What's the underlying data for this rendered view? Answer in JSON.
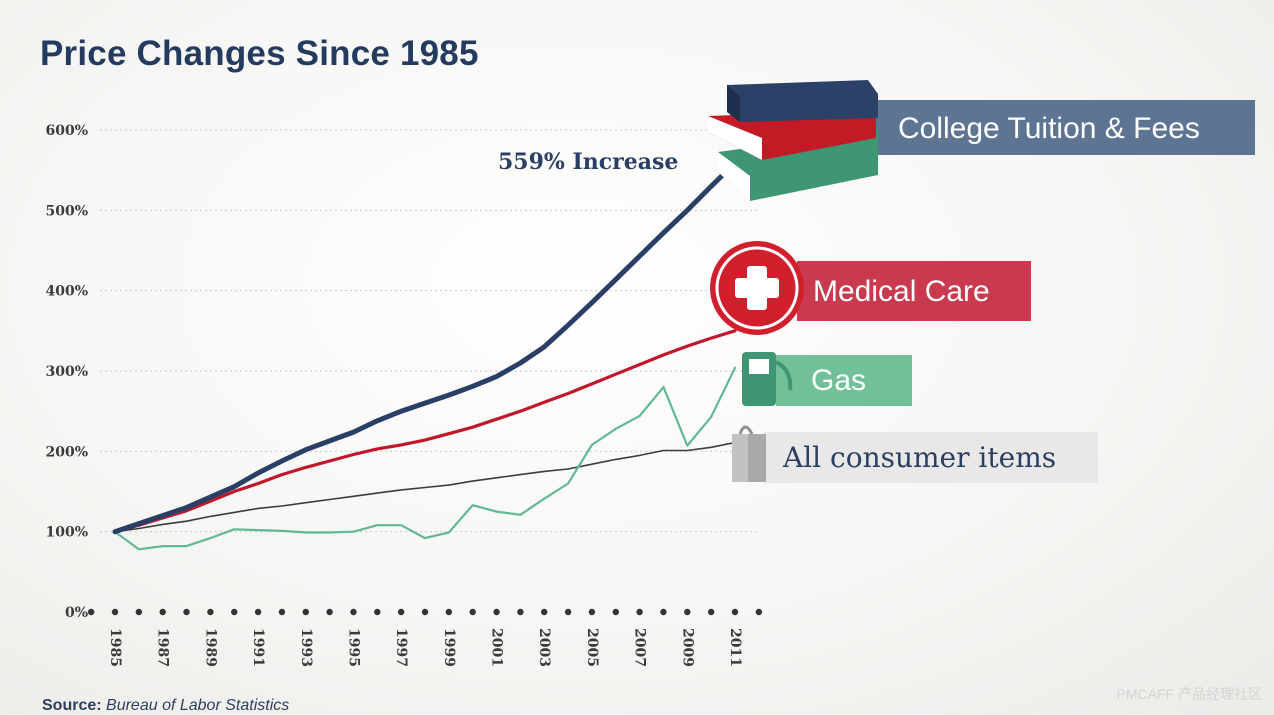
{
  "title": "Price Changes Since 1985",
  "source_label": "Source:",
  "source_name": "Bureau of Labor Statistics",
  "watermark": "PMCAFF 产品经理社区",
  "annotation": "559% Increase",
  "colors": {
    "tuition": "#2b3f66",
    "medical": "#c0172a",
    "gas": "#62b893",
    "consumer": "#3c3c3c",
    "tuition_label_bg": "#566f8f",
    "medical_label_bg": "#c83448",
    "gas_label_bg": "#6dbe97",
    "consumer_label_bg": "#e8e8e8",
    "axis_text": "#3a3a3a"
  },
  "chart_data": {
    "type": "line",
    "title": "Price Changes Since 1985",
    "x": [
      1985,
      1986,
      1987,
      1988,
      1989,
      1990,
      1991,
      1992,
      1993,
      1994,
      1995,
      1996,
      1997,
      1998,
      1999,
      2000,
      2001,
      2002,
      2003,
      2004,
      2005,
      2006,
      2007,
      2008,
      2009,
      2010,
      2011
    ],
    "x_tick_labels": [
      "1985",
      "1987",
      "1989",
      "1991",
      "1993",
      "1995",
      "1997",
      "1999",
      "2001",
      "2003",
      "2005",
      "2007",
      "2009",
      "2011"
    ],
    "y_tick_labels": [
      "0%",
      "100%",
      "200%",
      "300%",
      "400%",
      "500%",
      "600%"
    ],
    "y_ticks": [
      0,
      100,
      200,
      300,
      400,
      500,
      600
    ],
    "ylim": [
      0,
      600
    ],
    "xlim": [
      1985,
      2011
    ],
    "grid": true,
    "series": [
      {
        "name": "College Tuition & Fees",
        "key": "tuition",
        "values": [
          100,
          110,
          120,
          130,
          143,
          156,
          173,
          188,
          202,
          213,
          224,
          238,
          250,
          260,
          270,
          281,
          293,
          310,
          330,
          357,
          385,
          414,
          443,
          472,
          500,
          530,
          559
        ]
      },
      {
        "name": "Medical Care",
        "key": "medical",
        "values": [
          100,
          108,
          117,
          126,
          138,
          150,
          160,
          171,
          180,
          188,
          196,
          203,
          208,
          214,
          222,
          230,
          240,
          250,
          261,
          272,
          284,
          296,
          308,
          320,
          331,
          341,
          350
        ]
      },
      {
        "name": "Gas",
        "key": "gas",
        "values": [
          100,
          78,
          82,
          82,
          92,
          103,
          102,
          101,
          99,
          99,
          100,
          108,
          108,
          92,
          99,
          133,
          125,
          121,
          141,
          160,
          208,
          228,
          244,
          280,
          207,
          243,
          304
        ]
      },
      {
        "name": "All consumer items",
        "key": "consumer",
        "values": [
          100,
          104,
          109,
          113,
          119,
          124,
          129,
          132,
          136,
          140,
          144,
          148,
          152,
          155,
          158,
          163,
          167,
          171,
          175,
          178,
          184,
          190,
          195,
          201,
          201,
          205,
          211
        ]
      }
    ]
  }
}
